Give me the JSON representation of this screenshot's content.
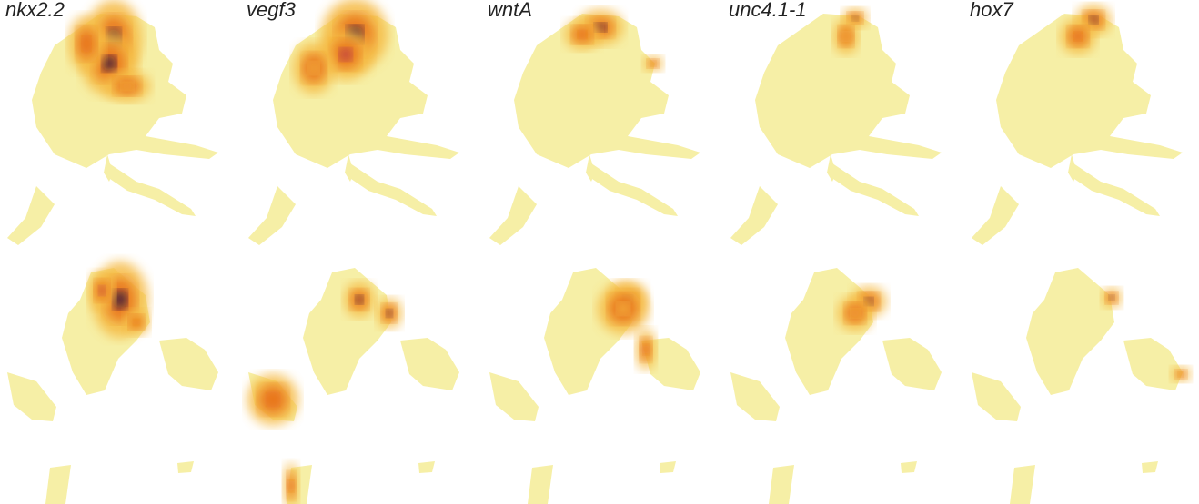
{
  "figure": {
    "panels": [
      {
        "gene": "nkx2.2"
      },
      {
        "gene": "vegf3"
      },
      {
        "gene": "wntA"
      },
      {
        "gene": "unc4.1-1"
      },
      {
        "gene": "hox7"
      }
    ]
  },
  "colors": {
    "low": "#f6efa6",
    "mid": "#f5b942",
    "high_orange": "#e8741c",
    "high_red": "#b83a4b",
    "max": "#2f0f3e"
  },
  "chart_data": [
    {
      "type": "scatter",
      "title": "nkx2.2",
      "xlabel": "",
      "ylabel": "",
      "grid": false,
      "colormap": "inferno_r",
      "hotspots": [
        {
          "region": "upper-embedding",
          "intensity": 1.0
        },
        {
          "region": "lower-embedding",
          "intensity": 1.0
        }
      ]
    },
    {
      "type": "scatter",
      "title": "vegf3",
      "xlabel": "",
      "ylabel": "",
      "grid": false,
      "colormap": "inferno_r",
      "hotspots": [
        {
          "region": "upper-embedding",
          "intensity": 1.0
        },
        {
          "region": "lower-embedding",
          "intensity": 0.9
        },
        {
          "region": "bottom-left-cluster",
          "intensity": 0.6
        }
      ]
    },
    {
      "type": "scatter",
      "title": "wntA",
      "xlabel": "",
      "ylabel": "",
      "grid": false,
      "colormap": "inferno_r",
      "hotspots": [
        {
          "region": "upper-embedding-top",
          "intensity": 0.9
        },
        {
          "region": "lower-embedding",
          "intensity": 0.8
        }
      ]
    },
    {
      "type": "scatter",
      "title": "unc4.1-1",
      "xlabel": "",
      "ylabel": "",
      "grid": false,
      "colormap": "inferno_r",
      "hotspots": [
        {
          "region": "upper-embedding-top",
          "intensity": 0.9
        },
        {
          "region": "lower-embedding",
          "intensity": 0.9
        }
      ]
    },
    {
      "type": "scatter",
      "title": "hox7",
      "xlabel": "",
      "ylabel": "",
      "grid": false,
      "colormap": "inferno_r",
      "hotspots": [
        {
          "region": "upper-embedding-top",
          "intensity": 1.0
        },
        {
          "region": "lower-embedding",
          "intensity": 0.9
        }
      ]
    }
  ]
}
